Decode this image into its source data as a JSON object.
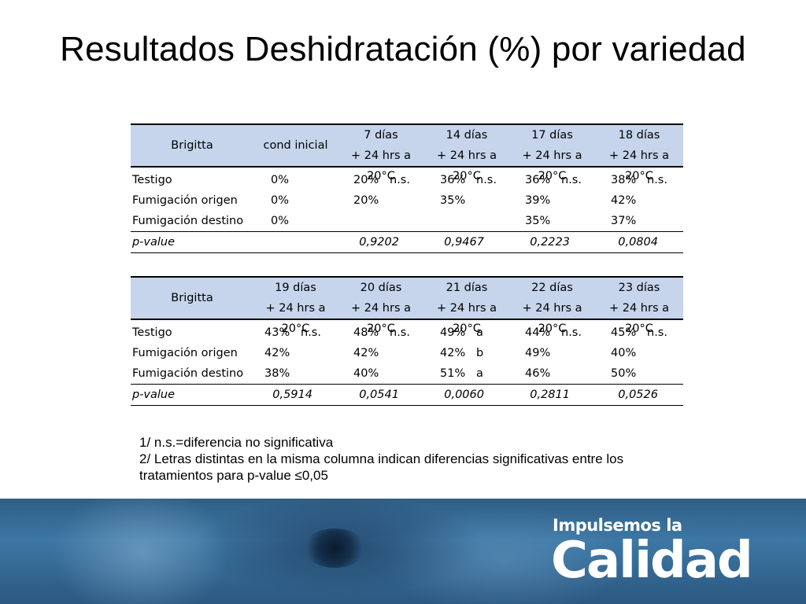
{
  "title": "Resultados Deshidratación (%) por variedad",
  "table1": {
    "corner": "Brigitta",
    "headers": [
      {
        "l1": "cond inicial",
        "l2": ""
      },
      {
        "l1": "7 días",
        "l2": "+ 24 hrs a 20°C"
      },
      {
        "l1": "14 días",
        "l2": "+ 24 hrs a 20°C"
      },
      {
        "l1": "17 días",
        "l2": "+ 24 hrs a 20°C"
      },
      {
        "l1": "18 días",
        "l2": "+ 24 hrs a 20°C"
      }
    ],
    "rows": [
      {
        "label": "Testigo",
        "cells": [
          [
            "0%",
            ""
          ],
          [
            "20%",
            "n.s."
          ],
          [
            "36%",
            "n.s."
          ],
          [
            "36%",
            "n.s."
          ],
          [
            "38%",
            "n.s."
          ]
        ]
      },
      {
        "label": "Fumigación origen",
        "cells": [
          [
            "0%",
            ""
          ],
          [
            "20%",
            ""
          ],
          [
            "35%",
            ""
          ],
          [
            "39%",
            ""
          ],
          [
            "42%",
            ""
          ]
        ]
      },
      {
        "label": "Fumigación destino",
        "cells": [
          [
            "0%",
            ""
          ],
          [
            "",
            ""
          ],
          [
            "",
            ""
          ],
          [
            "35%",
            ""
          ],
          [
            "37%",
            ""
          ]
        ]
      }
    ],
    "pvalue_label": "p-value",
    "pvalues": [
      "",
      "0,9202",
      "0,9467",
      "0,2223",
      "0,0804"
    ]
  },
  "table2": {
    "corner": "Brigitta",
    "headers": [
      {
        "l1": "19 días",
        "l2": "+ 24 hrs a 20°C"
      },
      {
        "l1": "20 días",
        "l2": "+ 24 hrs a 20°C"
      },
      {
        "l1": "21 días",
        "l2": "+ 24 hrs a 20°C"
      },
      {
        "l1": "22 días",
        "l2": "+ 24 hrs a 20°C"
      },
      {
        "l1": "23 días",
        "l2": "+ 24 hrs a 20°C"
      }
    ],
    "rows": [
      {
        "label": "Testigo",
        "cells": [
          [
            "43%",
            "n.s."
          ],
          [
            "48%",
            "n.s."
          ],
          [
            "49%",
            "a"
          ],
          [
            "44%",
            "n.s."
          ],
          [
            "45%",
            "n.s."
          ]
        ]
      },
      {
        "label": "Fumigación origen",
        "cells": [
          [
            "42%",
            ""
          ],
          [
            "42%",
            ""
          ],
          [
            "42%",
            "b"
          ],
          [
            "49%",
            ""
          ],
          [
            "40%",
            ""
          ]
        ]
      },
      {
        "label": "Fumigación destino",
        "cells": [
          [
            "38%",
            ""
          ],
          [
            "40%",
            ""
          ],
          [
            "51%",
            "a"
          ],
          [
            "46%",
            ""
          ],
          [
            "50%",
            ""
          ]
        ]
      }
    ],
    "pvalue_label": "p-value",
    "pvalues": [
      "0,5914",
      "0,0541",
      "0,0060",
      "0,2811",
      "0,0526"
    ]
  },
  "notes": [
    "1/ n.s.=diferencia no significativa",
    "2/ Letras distintas en la misma columna indican diferencias significativas entre los tratamientos para p-value ≤0,05"
  ],
  "logo": {
    "line1": "Impulsemos la",
    "line2": "Calidad"
  },
  "colors": {
    "header_fill": "#c6d5ec",
    "banner": "#3d77a4"
  }
}
